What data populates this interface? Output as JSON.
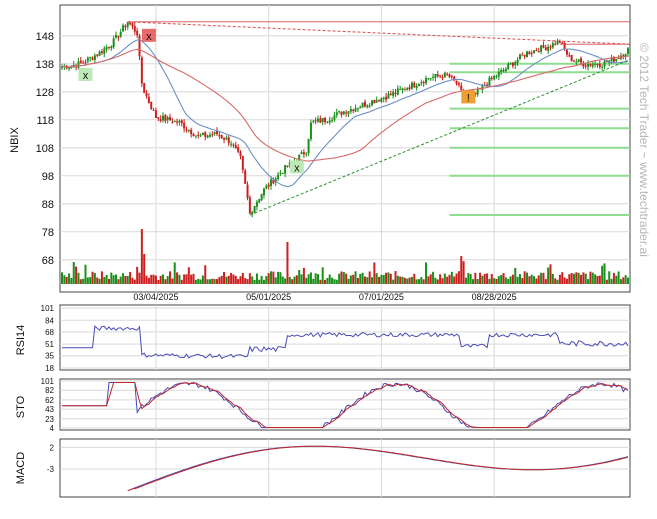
{
  "watermark": "© 2012 Tech Trader ~ www.techtrader.ai",
  "panels": {
    "price_label": "NBIX",
    "rsi_label": "RSI14",
    "sto_label": "STO",
    "macd_label": "MACD"
  },
  "colors": {
    "up": "#1a8f1a",
    "down": "#cc1f1f",
    "ma_fast": "#6b8fc6",
    "ma_slow": "#d66a6a",
    "support": "#8fdc8f",
    "trend": "#2f8f2f",
    "resistance": "#d84b4b",
    "indicator": "#4a4ab8",
    "signal": "#c0282a",
    "grid": "#d9d9d9"
  },
  "markers": [
    {
      "label": "x",
      "kind": "buy"
    },
    {
      "label": "x",
      "kind": "sell"
    },
    {
      "label": "x",
      "kind": "buy"
    },
    {
      "label": "!",
      "kind": "alert"
    }
  ],
  "chart_data": [
    {
      "type": "candlestick",
      "ylabel": "NBIX",
      "yticks": [
        68,
        78,
        88,
        98,
        108,
        118,
        128,
        138,
        148
      ],
      "ylim": [
        59,
        159
      ],
      "xticks": [
        "03/04/2025",
        "05/01/2025",
        "07/01/2025",
        "08/28/2025"
      ],
      "anchors": [
        {
          "i": 0,
          "p": 137
        },
        {
          "i": 8,
          "p": 138
        },
        {
          "i": 16,
          "p": 142
        },
        {
          "i": 22,
          "p": 146
        },
        {
          "i": 28,
          "p": 153
        },
        {
          "i": 32,
          "p": 149
        },
        {
          "i": 34,
          "p": 130
        },
        {
          "i": 40,
          "p": 119
        },
        {
          "i": 50,
          "p": 117
        },
        {
          "i": 58,
          "p": 112
        },
        {
          "i": 66,
          "p": 113
        },
        {
          "i": 72,
          "p": 110
        },
        {
          "i": 76,
          "p": 104
        },
        {
          "i": 80,
          "p": 85
        },
        {
          "i": 86,
          "p": 93
        },
        {
          "i": 94,
          "p": 100
        },
        {
          "i": 100,
          "p": 104
        },
        {
          "i": 104,
          "p": 107
        },
        {
          "i": 106,
          "p": 117
        },
        {
          "i": 112,
          "p": 118
        },
        {
          "i": 120,
          "p": 121
        },
        {
          "i": 130,
          "p": 124
        },
        {
          "i": 140,
          "p": 127
        },
        {
          "i": 148,
          "p": 130
        },
        {
          "i": 156,
          "p": 133
        },
        {
          "i": 164,
          "p": 134
        },
        {
          "i": 168,
          "p": 131
        },
        {
          "i": 171,
          "p": 126
        },
        {
          "i": 176,
          "p": 127
        },
        {
          "i": 182,
          "p": 132
        },
        {
          "i": 190,
          "p": 137
        },
        {
          "i": 198,
          "p": 142
        },
        {
          "i": 206,
          "p": 144
        },
        {
          "i": 212,
          "p": 146
        },
        {
          "i": 216,
          "p": 140
        },
        {
          "i": 222,
          "p": 138
        },
        {
          "i": 230,
          "p": 138
        },
        {
          "i": 236,
          "p": 140
        },
        {
          "i": 241,
          "p": 143
        }
      ],
      "support_levels": [
        138,
        135,
        122,
        115,
        108,
        98,
        84
      ],
      "resistance_levels": [
        153,
        145,
        147
      ]
    },
    {
      "type": "line",
      "ylabel": "RSI14",
      "yticks": [
        101,
        84,
        68,
        51,
        35,
        18
      ],
      "ylim": [
        18,
        101
      ]
    },
    {
      "type": "line",
      "ylabel": "STO",
      "yticks": [
        101,
        82,
        62,
        43,
        23,
        4
      ],
      "ylim": [
        4,
        101
      ]
    },
    {
      "type": "line",
      "ylabel": "MACD",
      "yticks": [
        2,
        -3
      ],
      "ylim": [
        -9,
        3
      ]
    }
  ]
}
